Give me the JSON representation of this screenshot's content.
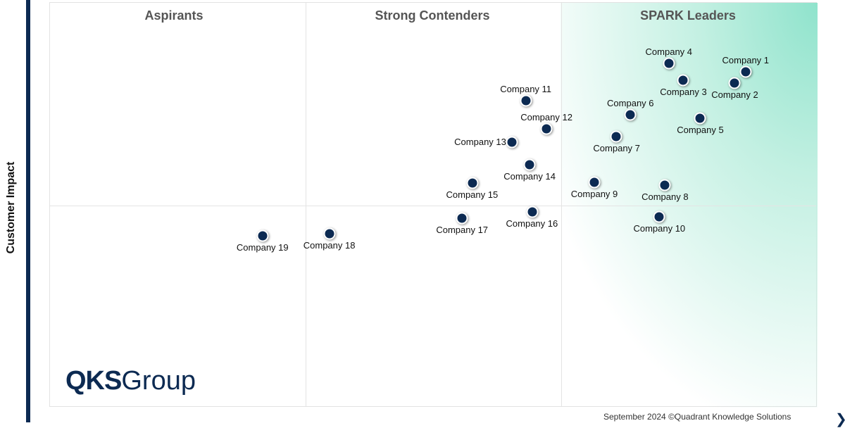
{
  "chart_data": {
    "type": "scatter",
    "subtype": "quadrant",
    "ylabel": "Customer Impact",
    "xlabel": "",
    "xlim": [
      0,
      100
    ],
    "ylim": [
      0,
      100
    ],
    "grid": false,
    "quadrant_dividers": {
      "x": [
        33.3,
        66.6
      ],
      "y": [
        50
      ]
    },
    "quadrants": [
      "Aspirants",
      "Strong Contenders",
      "SPARK Leaders"
    ],
    "highlight_color": "#8fe3cc",
    "point_color": "#0c2a52",
    "points": [
      {
        "name": "Company 1",
        "x": 90.6,
        "y": 83.0,
        "label": "above"
      },
      {
        "name": "Company 2",
        "x": 89.2,
        "y": 80.2,
        "label": "below"
      },
      {
        "name": "Company 3",
        "x": 82.5,
        "y": 80.9,
        "label": "below"
      },
      {
        "name": "Company 4",
        "x": 80.6,
        "y": 85.0,
        "label": "above"
      },
      {
        "name": "Company 5",
        "x": 84.7,
        "y": 71.5,
        "label": "below"
      },
      {
        "name": "Company 6",
        "x": 75.6,
        "y": 72.3,
        "label": "above"
      },
      {
        "name": "Company 7",
        "x": 73.8,
        "y": 67.0,
        "label": "below"
      },
      {
        "name": "Company 8",
        "x": 80.1,
        "y": 55.0,
        "label": "below"
      },
      {
        "name": "Company 9",
        "x": 70.9,
        "y": 55.7,
        "label": "below"
      },
      {
        "name": "Company 10",
        "x": 79.4,
        "y": 47.1,
        "label": "below"
      },
      {
        "name": "Company 11",
        "x": 62.0,
        "y": 75.8,
        "label": "above"
      },
      {
        "name": "Company 12",
        "x": 64.7,
        "y": 68.9,
        "label": "above"
      },
      {
        "name": "Company 13",
        "x": 60.2,
        "y": 65.6,
        "label": "left"
      },
      {
        "name": "Company 14",
        "x": 62.5,
        "y": 60.0,
        "label": "below"
      },
      {
        "name": "Company 15",
        "x": 55.0,
        "y": 55.5,
        "label": "below"
      },
      {
        "name": "Company 16",
        "x": 62.8,
        "y": 48.3,
        "label": "below"
      },
      {
        "name": "Company 17",
        "x": 53.7,
        "y": 46.8,
        "label": "below"
      },
      {
        "name": "Company 18",
        "x": 36.4,
        "y": 42.9,
        "label": "below"
      },
      {
        "name": "Company 19",
        "x": 27.7,
        "y": 42.4,
        "label": "below"
      }
    ]
  },
  "logo": {
    "bold": "QKS",
    "rest": "Group"
  },
  "footer": "September 2024 ©Quadrant Knowledge Solutions"
}
